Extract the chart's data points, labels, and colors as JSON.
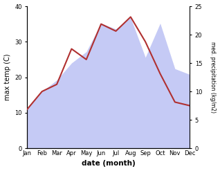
{
  "months": [
    "Jan",
    "Feb",
    "Mar",
    "Apr",
    "May",
    "Jun",
    "Jul",
    "Aug",
    "Sep",
    "Oct",
    "Nov",
    "Dec"
  ],
  "max_temp": [
    11,
    16,
    18,
    28,
    25,
    35,
    33,
    37,
    30,
    21,
    13,
    12
  ],
  "precipitation": [
    7,
    10,
    12,
    15,
    17,
    22,
    21,
    23,
    16,
    22,
    14,
    13
  ],
  "temp_color": "#b03030",
  "precip_fill_color": "#c5caf5",
  "left_ylabel": "max temp (C)",
  "right_ylabel": "med. precipitation (kg/m2)",
  "xlabel": "date (month)",
  "ylim_temp": [
    0,
    40
  ],
  "ylim_precip": [
    0,
    25
  ],
  "yticks_temp": [
    0,
    10,
    20,
    30,
    40
  ],
  "yticks_precip": [
    0,
    5,
    10,
    15,
    20,
    25
  ],
  "bg_color": "#ffffff"
}
